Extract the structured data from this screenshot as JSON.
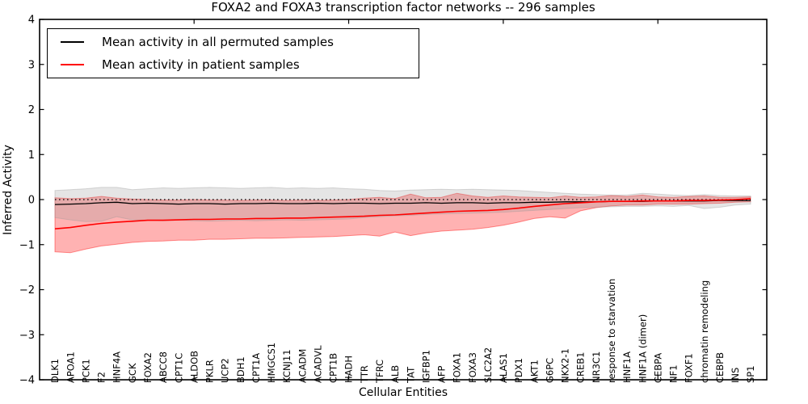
{
  "title": "FOXA2 and FOXA3 transcription factor networks -- 296 samples",
  "legend": {
    "items": [
      {
        "label": "Mean activity in all permuted samples",
        "color": "#000000"
      },
      {
        "label": "Mean activity in patient samples",
        "color": "#ff0000"
      }
    ]
  },
  "chart_data": {
    "type": "line",
    "title": "FOXA2 and FOXA3 transcription factor networks -- 296 samples",
    "xlabel": "Cellular Entities",
    "ylabel": "Inferred Activity",
    "ylim": [
      -4,
      4
    ],
    "yticks": [
      -4,
      -3,
      -2,
      -1,
      0,
      1,
      2,
      3,
      4
    ],
    "xtick_index": [
      9,
      19,
      29,
      39
    ],
    "grid": false,
    "zero_line_style": "dotted",
    "legend_position": "upper left",
    "categories": [
      "DLK1",
      "APOA1",
      "PCK1",
      "F2",
      "HNF4A",
      "GCK",
      "FOXA2",
      "ABCC8",
      "CPT1C",
      "ALDOB",
      "PKLR",
      "UCP2",
      "BDH1",
      "CPT1A",
      "HMGCS1",
      "KCNJ11",
      "ACADM",
      "ACADVL",
      "CPT1B",
      "HADH",
      "TTR",
      "TFRC",
      "ALB",
      "TAT",
      "IGFBP1",
      "AFP",
      "FOXA1",
      "FOXA3",
      "SLC2A2",
      "ALAS1",
      "PDX1",
      "AKT1",
      "G6PC",
      "NKX2-1",
      "CREB1",
      "NR3C1",
      "response to starvation",
      "HNF1A",
      "HNF1A (dimer)",
      "CEBPA",
      "NF1",
      "FOXF1",
      "chromatin remodeling",
      "CEBPB",
      "INS",
      "SP1"
    ],
    "series": [
      {
        "name": "Mean activity in all permuted samples",
        "color": "#000000",
        "line_width": 1.3,
        "band_color": "#999999",
        "band_opacity": 0.25,
        "values": [
          -0.11,
          -0.1,
          -0.09,
          -0.07,
          -0.06,
          -0.09,
          -0.08,
          -0.09,
          -0.1,
          -0.09,
          -0.09,
          -0.1,
          -0.09,
          -0.09,
          -0.08,
          -0.09,
          -0.09,
          -0.08,
          -0.09,
          -0.08,
          -0.08,
          -0.09,
          -0.08,
          -0.08,
          -0.07,
          -0.08,
          -0.07,
          -0.07,
          -0.08,
          -0.07,
          -0.07,
          -0.06,
          -0.06,
          -0.05,
          -0.05,
          -0.05,
          -0.04,
          -0.04,
          -0.04,
          -0.03,
          -0.03,
          -0.03,
          -0.03,
          -0.02,
          -0.02,
          -0.02
        ],
        "band_upper": [
          0.2,
          0.22,
          0.24,
          0.27,
          0.27,
          0.22,
          0.24,
          0.26,
          0.25,
          0.26,
          0.27,
          0.26,
          0.25,
          0.26,
          0.27,
          0.25,
          0.26,
          0.25,
          0.26,
          0.24,
          0.23,
          0.2,
          0.19,
          0.21,
          0.22,
          0.23,
          0.22,
          0.23,
          0.22,
          0.21,
          0.2,
          0.18,
          0.16,
          0.14,
          0.12,
          0.11,
          0.1,
          0.1,
          0.14,
          0.12,
          0.1,
          0.09,
          0.11,
          0.09,
          0.08,
          0.08
        ],
        "band_lower": [
          -0.4,
          -0.45,
          -0.49,
          -0.48,
          -0.38,
          -0.45,
          -0.46,
          -0.47,
          -0.46,
          -0.47,
          -0.48,
          -0.47,
          -0.46,
          -0.47,
          -0.46,
          -0.45,
          -0.46,
          -0.45,
          -0.44,
          -0.43,
          -0.4,
          -0.38,
          -0.36,
          -0.35,
          -0.33,
          -0.32,
          -0.31,
          -0.3,
          -0.29,
          -0.28,
          -0.26,
          -0.24,
          -0.22,
          -0.2,
          -0.18,
          -0.17,
          -0.16,
          -0.15,
          -0.15,
          -0.14,
          -0.15,
          -0.13,
          -0.2,
          -0.17,
          -0.12,
          -0.1
        ]
      },
      {
        "name": "Mean activity in patient samples",
        "color": "#ff0000",
        "line_width": 1.6,
        "band_color": "#ff0000",
        "band_opacity": 0.3,
        "values": [
          -0.65,
          -0.62,
          -0.57,
          -0.53,
          -0.5,
          -0.48,
          -0.46,
          -0.46,
          -0.45,
          -0.44,
          -0.44,
          -0.43,
          -0.43,
          -0.42,
          -0.42,
          -0.41,
          -0.41,
          -0.4,
          -0.39,
          -0.38,
          -0.37,
          -0.35,
          -0.34,
          -0.32,
          -0.3,
          -0.28,
          -0.26,
          -0.25,
          -0.24,
          -0.22,
          -0.19,
          -0.15,
          -0.12,
          -0.09,
          -0.07,
          -0.05,
          -0.04,
          -0.04,
          -0.03,
          -0.03,
          -0.03,
          -0.02,
          -0.02,
          -0.01,
          0.0,
          0.02
        ],
        "band_upper": [
          0.04,
          0.02,
          0.03,
          0.07,
          0.03,
          0.01,
          0.0,
          -0.01,
          -0.01,
          0.0,
          -0.01,
          -0.01,
          -0.02,
          -0.01,
          -0.01,
          -0.02,
          -0.01,
          -0.02,
          -0.01,
          0.0,
          0.03,
          0.05,
          0.02,
          0.12,
          0.04,
          0.05,
          0.14,
          0.08,
          0.05,
          0.08,
          0.06,
          0.05,
          0.04,
          0.08,
          0.05,
          0.06,
          0.09,
          0.07,
          0.1,
          0.06,
          0.05,
          0.07,
          0.08,
          0.05,
          0.05,
          0.06
        ],
        "band_lower": [
          -1.16,
          -1.18,
          -1.1,
          -1.03,
          -0.99,
          -0.95,
          -0.93,
          -0.92,
          -0.9,
          -0.9,
          -0.88,
          -0.88,
          -0.87,
          -0.86,
          -0.86,
          -0.85,
          -0.84,
          -0.83,
          -0.82,
          -0.8,
          -0.78,
          -0.81,
          -0.72,
          -0.8,
          -0.74,
          -0.7,
          -0.68,
          -0.66,
          -0.62,
          -0.57,
          -0.5,
          -0.42,
          -0.38,
          -0.41,
          -0.25,
          -0.18,
          -0.14,
          -0.12,
          -0.12,
          -0.1,
          -0.1,
          -0.1,
          -0.09,
          -0.08,
          -0.06,
          -0.05
        ]
      }
    ]
  }
}
